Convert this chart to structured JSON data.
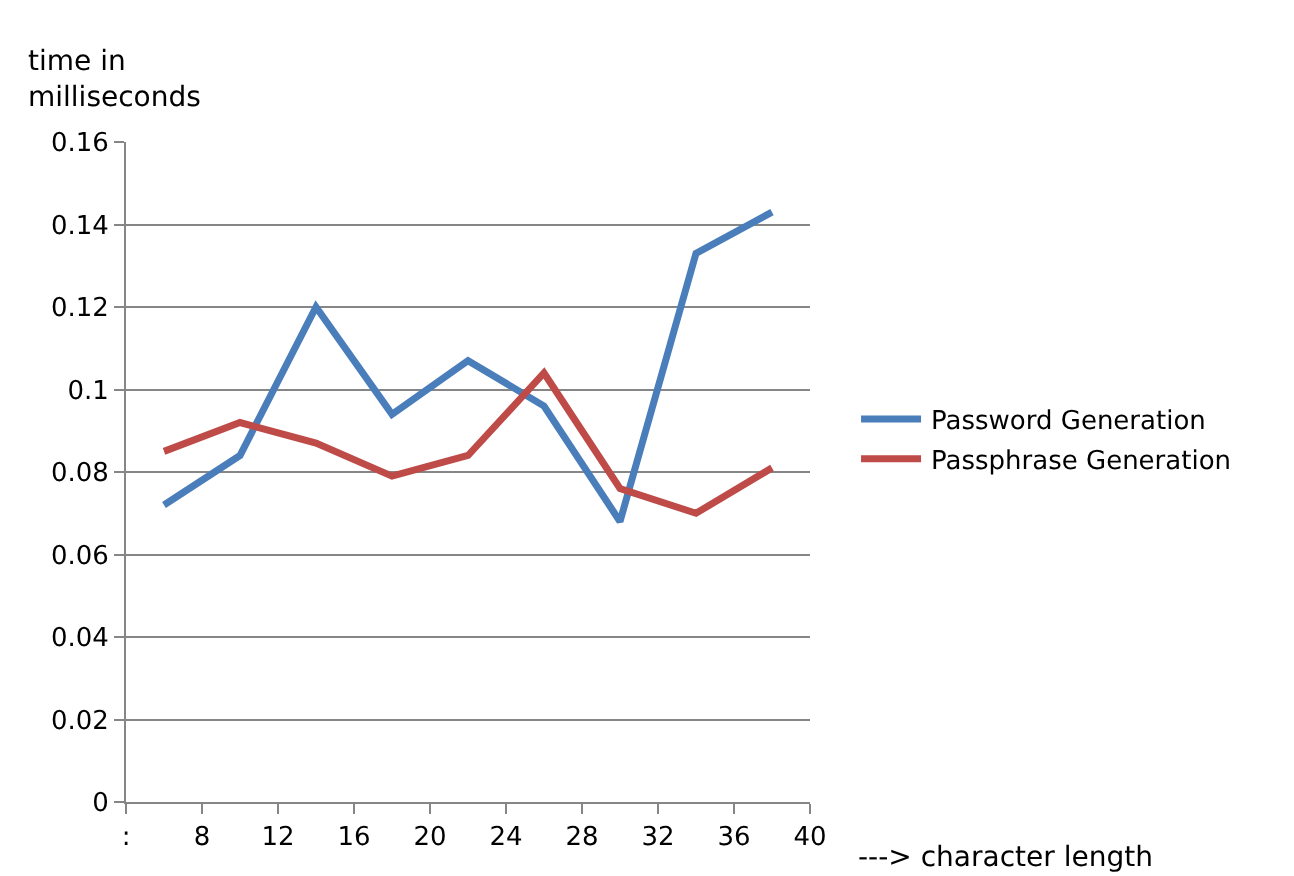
{
  "chart_data": {
    "type": "line",
    "ylabel": "time in milliseconds",
    "xlabel": "---> character length",
    "x": [
      6,
      10,
      14,
      18,
      22,
      26,
      30,
      34,
      38
    ],
    "series": [
      {
        "name": "Password Generation",
        "color": "#4a7ebb",
        "values": [
          0.072,
          0.084,
          0.12,
          0.094,
          0.107,
          0.096,
          0.068,
          0.133,
          0.143
        ]
      },
      {
        "name": "Passphrase Generation",
        "color": "#be4b48",
        "values": [
          0.085,
          0.092,
          0.087,
          0.079,
          0.084,
          0.104,
          0.076,
          0.07,
          0.081
        ]
      }
    ],
    "xlim": [
      4,
      40
    ],
    "xticks": [
      {
        "value": 4,
        "label": ":"
      },
      8,
      12,
      16,
      20,
      24,
      28,
      32,
      36,
      40
    ],
    "ylim": [
      0,
      0.16
    ],
    "yticks": [
      0,
      0.02,
      0.04,
      0.06,
      0.08,
      0.1,
      0.12,
      0.14,
      0.16
    ],
    "grid": "y",
    "legend": "right",
    "marker": "none",
    "line_style": "solid"
  }
}
